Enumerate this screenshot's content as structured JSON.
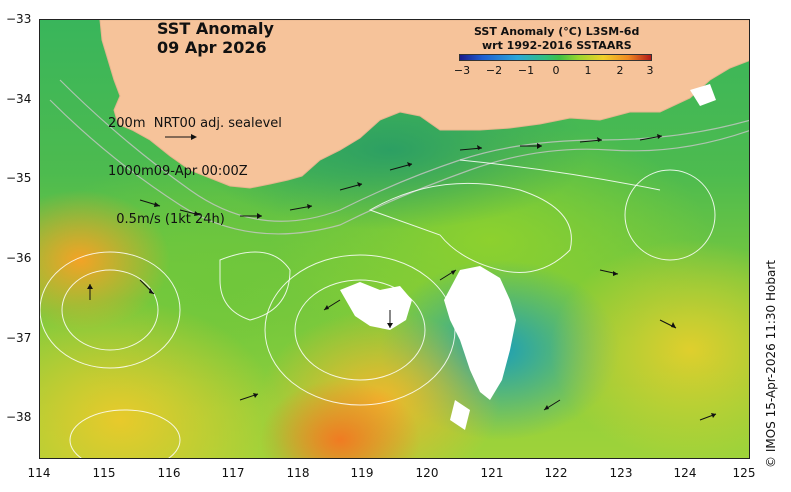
{
  "title": {
    "line1": "SST Anomaly",
    "line2": "09 Apr 2026"
  },
  "info": {
    "line1": "200m  NRT00 adj. sealevel",
    "line2": "1000m09-Apr 00:00Z",
    "line3": "  0.5m/s (1kt 24h)"
  },
  "colorbar": {
    "title": "SST Anomaly (°C) L3SM-6d",
    "subtitle": "wrt 1992-2016 SSTAARS",
    "ticks": [
      "−3",
      "−2",
      "−1",
      "0",
      "1",
      "2",
      "3"
    ],
    "min": -3,
    "max": 3
  },
  "axes": {
    "y_ticks": [
      "−33",
      "−34",
      "−35",
      "−36",
      "−37",
      "−38"
    ],
    "x_ticks": [
      "114",
      "115",
      "116",
      "117",
      "118",
      "119",
      "120",
      "121",
      "122",
      "123",
      "124",
      "125"
    ],
    "lat_range": [
      -38.5,
      -33
    ],
    "lon_range": [
      114,
      125
    ]
  },
  "credit": "© IMOS 15-Apr-2026 11:30 Hobart",
  "colors": {
    "land": "#f6c39a",
    "ocean_base": "#4dbb4f"
  }
}
